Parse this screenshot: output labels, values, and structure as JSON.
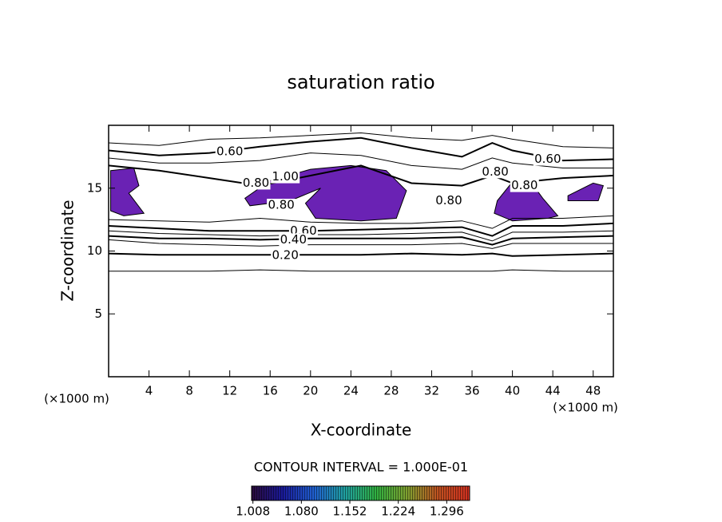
{
  "chart_data": {
    "type": "contour",
    "title": "saturation ratio",
    "x_label": "X-coordinate",
    "y_label": "Z-coordinate",
    "x_unit": "(×1000 m)",
    "y_unit": "(×1000 m)",
    "xlim": [
      0,
      50
    ],
    "xticks": [
      4,
      8,
      12,
      16,
      20,
      24,
      28,
      32,
      36,
      40,
      44,
      48
    ],
    "ylim": [
      0,
      20
    ],
    "yticks": [
      5,
      10,
      15
    ],
    "line_color": "#000000",
    "contour_x": [
      0,
      5,
      10,
      15,
      20,
      25,
      30,
      35,
      38,
      40,
      45,
      50
    ],
    "contours": [
      {
        "level": 0.1,
        "z": [
          8.4,
          8.4,
          8.4,
          8.5,
          8.4,
          8.4,
          8.4,
          8.4,
          8.4,
          8.5,
          8.4,
          8.4
        ]
      },
      {
        "level": 0.2,
        "z": [
          9.8,
          9.7,
          9.7,
          9.7,
          9.7,
          9.7,
          9.8,
          9.7,
          9.8,
          9.6,
          9.7,
          9.8
        ]
      },
      {
        "level": 0.3,
        "z": [
          10.9,
          10.6,
          10.5,
          10.4,
          10.5,
          10.5,
          10.5,
          10.6,
          10.2,
          10.6,
          10.6,
          10.6
        ]
      },
      {
        "level": 0.4,
        "z": [
          11.2,
          11.0,
          11.0,
          10.9,
          11.0,
          11.0,
          11.0,
          11.1,
          10.5,
          11.0,
          11.1,
          11.2
        ]
      },
      {
        "level": 0.5,
        "z": [
          11.6,
          11.4,
          11.3,
          11.2,
          11.3,
          11.3,
          11.4,
          11.5,
          10.8,
          11.5,
          11.5,
          11.6
        ]
      },
      {
        "level": 0.6,
        "z": [
          12.0,
          11.8,
          11.6,
          11.6,
          11.6,
          11.7,
          11.8,
          11.9,
          11.2,
          12.0,
          12.0,
          12.2
        ]
      },
      {
        "level": 0.7,
        "z": [
          12.5,
          12.4,
          12.3,
          12.6,
          12.3,
          12.2,
          12.2,
          12.4,
          11.8,
          12.6,
          12.6,
          12.8
        ]
      },
      {
        "level": 0.5,
        "z": [
          18.6,
          18.4,
          18.9,
          19.0,
          19.2,
          19.4,
          19.0,
          18.8,
          19.2,
          18.9,
          18.3,
          18.2
        ]
      },
      {
        "level": 0.6,
        "z": [
          18.0,
          17.6,
          17.8,
          18.3,
          18.7,
          19.0,
          18.2,
          17.5,
          18.6,
          18.0,
          17.2,
          17.3
        ]
      },
      {
        "level": 0.7,
        "z": [
          17.4,
          17.0,
          17.0,
          17.2,
          17.8,
          17.6,
          16.8,
          16.5,
          17.4,
          17.0,
          16.6,
          16.6
        ]
      },
      {
        "level": 0.8,
        "z": [
          16.8,
          16.4,
          15.8,
          15.2,
          16.0,
          16.8,
          15.4,
          15.2,
          16.0,
          15.4,
          15.8,
          16.0
        ]
      }
    ],
    "regions": [
      {
        "color": "#6a22b4",
        "x": [
          0.2,
          2.5,
          3.0,
          2.0,
          3.5,
          1.5,
          0.2
        ],
        "z": [
          16.4,
          16.6,
          15.2,
          14.6,
          13.0,
          12.8,
          13.2
        ]
      },
      {
        "color": "#6a22b4",
        "x": [
          13.5,
          16.0,
          20.0,
          24.0,
          27.5,
          29.5,
          28.5,
          25.0,
          20.5,
          19.5,
          21.0,
          18.0,
          14.0
        ],
        "z": [
          14.2,
          15.6,
          16.5,
          16.8,
          16.4,
          14.8,
          12.6,
          12.4,
          12.6,
          13.8,
          15.0,
          14.0,
          13.6
        ]
      },
      {
        "color": "#6a22b4",
        "x": [
          38.5,
          40.0,
          42.0,
          43.0,
          44.5,
          43.5,
          40.0,
          38.2
        ],
        "z": [
          14.0,
          15.5,
          15.3,
          14.2,
          12.8,
          12.6,
          12.4,
          13.0
        ]
      },
      {
        "color": "#6a22b4",
        "x": [
          45.5,
          48.0,
          49.0,
          48.5,
          45.5
        ],
        "z": [
          14.4,
          15.4,
          15.2,
          14.0,
          14.0
        ]
      }
    ],
    "contour_labels": {
      "x": [
        12.0,
        14.6,
        17.5,
        17.1,
        19.3,
        18.3,
        17.5,
        33.7,
        38.3,
        41.2,
        43.5
      ],
      "z": [
        17.9,
        15.4,
        15.9,
        13.65,
        11.6,
        10.9,
        9.65,
        14.0,
        16.3,
        15.2,
        17.3
      ],
      "values": [
        0.6,
        0.8,
        1.0,
        0.8,
        0.6,
        0.4,
        0.2,
        0.8,
        0.8,
        0.8,
        0.6
      ],
      "value_labels": [
        "0.60",
        "0.80",
        "1.00",
        "0.80",
        "0.60",
        "0.40",
        "0.20",
        "0.80",
        "0.80",
        "0.80",
        "0.60"
      ]
    },
    "contour_interval": "CONTOUR INTERVAL = 1.000E-01",
    "colorbar": {
      "clim": [
        1.006,
        1.33
      ],
      "colors": [
        "#2a0a3a",
        "#1a1a9a",
        "#2060d0",
        "#20a0a0",
        "#30b040",
        "#80a030",
        "#c05020",
        "#d03020"
      ],
      "ticks": [
        1.008,
        {
          "value": 1.08,
          "label": "1.080"
        },
        1.152,
        1.224,
        1.296
      ]
    }
  }
}
